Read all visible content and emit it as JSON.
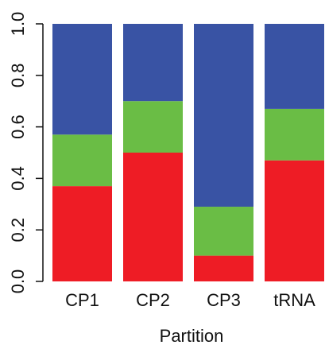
{
  "chart_data": {
    "type": "bar",
    "stacked": true,
    "categories": [
      "CP1",
      "CP2",
      "CP3",
      "tRNA"
    ],
    "series": [
      {
        "color": "#ee1c25",
        "values": [
          0.37,
          0.5,
          0.1,
          0.47
        ]
      },
      {
        "color": "#6abd45",
        "values": [
          0.2,
          0.2,
          0.19,
          0.2
        ]
      },
      {
        "color": "#3953a4",
        "values": [
          0.43,
          0.3,
          0.71,
          0.33
        ]
      }
    ],
    "xlabel": "Partition",
    "ylabel": "",
    "ylim": [
      0,
      1
    ],
    "yticks": [
      "0.0",
      "0.2",
      "0.4",
      "0.6",
      "0.8",
      "1.0"
    ],
    "ytick_values": [
      0,
      0.2,
      0.4,
      0.6,
      0.8,
      1.0
    ],
    "grid": false,
    "legend": "none"
  }
}
